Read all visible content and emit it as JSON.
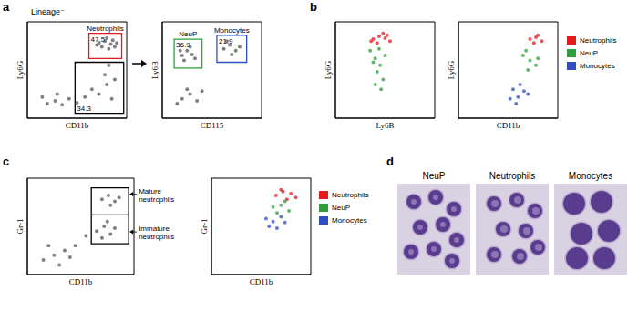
{
  "panel_letters": [
    "a",
    "b",
    "c",
    "d"
  ],
  "chart_data": [
    {
      "type": "scatter",
      "title": "Lineage⁻",
      "x_label": "CD11b",
      "y_label": "Ly6G",
      "xlim": [
        0,
        100
      ],
      "ylim": [
        0,
        100
      ],
      "tick_labels": false,
      "series": [
        {
          "color": "#555555",
          "x": [
            72,
            78,
            84,
            88,
            80,
            75,
            86,
            70,
            82,
            90,
            20,
            28,
            35,
            42,
            50,
            58,
            65,
            72,
            80,
            85,
            78,
            88,
            82,
            15,
            30
          ],
          "values": [
            78,
            80,
            77,
            74,
            83,
            74,
            81,
            76,
            72,
            78,
            15,
            18,
            14,
            20,
            16,
            22,
            30,
            25,
            35,
            20,
            45,
            40,
            55,
            22,
            25
          ]
        }
      ],
      "gates": [
        {
          "name": "Neutrophils",
          "value": 47.5,
          "color": "#e41a1c",
          "x": [
            62,
            95
          ],
          "y": [
            62,
            88
          ]
        },
        {
          "value": 34.3,
          "color": "#000000",
          "x": [
            48,
            97
          ],
          "y": [
            5,
            58
          ]
        }
      ]
    },
    {
      "type": "scatter",
      "x_label": "CD115",
      "y_label": "Ly6B",
      "xlim": [
        0,
        100
      ],
      "ylim": [
        0,
        100
      ],
      "tick_labels": false,
      "series": [
        {
          "color": "#555555",
          "x": [
            20,
            25,
            30,
            22,
            28,
            33,
            18,
            62,
            68,
            74,
            70,
            78,
            65,
            20,
            28,
            35,
            25,
            40,
            15
          ],
          "values": [
            65,
            70,
            66,
            60,
            74,
            62,
            70,
            72,
            76,
            70,
            66,
            74,
            80,
            20,
            25,
            18,
            30,
            28,
            15
          ]
        }
      ],
      "gates": [
        {
          "name": "NeuP",
          "value": 36.9,
          "color": "#2e9e3e",
          "x": [
            12,
            40
          ],
          "y": [
            52,
            82
          ]
        },
        {
          "name": "Monocytes",
          "value": 21.9,
          "color": "#2f4fbf",
          "x": [
            55,
            85
          ],
          "y": [
            58,
            86
          ]
        }
      ]
    },
    {
      "type": "scatter",
      "x_label": "Ly6B",
      "y_label": "Ly6G",
      "xlim": [
        0,
        100
      ],
      "ylim": [
        0,
        100
      ],
      "tick_labels": false,
      "series": [
        {
          "name": "Neutrophils",
          "color": "#e41a1c",
          "x": [
            38,
            44,
            50,
            55,
            42,
            48,
            36,
            52
          ],
          "values": [
            82,
            85,
            83,
            80,
            78,
            88,
            80,
            86
          ]
        },
        {
          "name": "NeuP",
          "color": "#2e9e3e",
          "x": [
            35,
            40,
            45,
            42,
            48,
            38,
            50,
            44,
            40,
            46
          ],
          "values": [
            70,
            62,
            55,
            48,
            40,
            58,
            65,
            72,
            35,
            30
          ]
        }
      ]
    },
    {
      "type": "scatter",
      "x_label": "CD11b",
      "y_label": "Ly6G",
      "xlim": [
        0,
        100
      ],
      "ylim": [
        0,
        100
      ],
      "tick_labels": false,
      "legend": "right",
      "series": [
        {
          "name": "Neutrophils",
          "color": "#e41a1c",
          "x": [
            72,
            78,
            84,
            76,
            80
          ],
          "values": [
            82,
            84,
            80,
            78,
            86
          ]
        },
        {
          "name": "NeuP",
          "color": "#2e9e3e",
          "x": [
            65,
            72,
            78,
            70,
            80,
            68
          ],
          "values": [
            65,
            60,
            55,
            50,
            62,
            70
          ]
        },
        {
          "name": "Monocytes",
          "color": "#2f4fbf",
          "x": [
            55,
            60,
            66,
            52,
            62,
            70,
            58
          ],
          "values": [
            30,
            22,
            28,
            20,
            35,
            25,
            15
          ]
        }
      ]
    },
    {
      "type": "scatter",
      "x_label": "CD11b",
      "y_label": "Gr-1",
      "xlim": [
        0,
        100
      ],
      "ylim": [
        0,
        100
      ],
      "tick_labels": false,
      "series": [
        {
          "color": "#555555",
          "x": [
            70,
            76,
            82,
            78,
            86,
            65,
            72,
            78,
            70,
            82,
            75,
            15,
            25,
            35,
            45,
            55,
            20,
            40,
            30
          ],
          "values": [
            78,
            82,
            76,
            72,
            80,
            45,
            50,
            42,
            38,
            48,
            55,
            15,
            20,
            25,
            30,
            40,
            30,
            18,
            10
          ]
        }
      ],
      "gates": [
        {
          "color": "#000000",
          "x": [
            60,
            95
          ],
          "y": [
            32,
            90
          ],
          "divide": 62
        }
      ],
      "annotations": [
        "Mature neutrophils",
        "Immature neutrophils"
      ]
    },
    {
      "type": "scatter",
      "x_label": "CD11b",
      "y_label": "Gr-1",
      "xlim": [
        0,
        100
      ],
      "ylim": [
        0,
        100
      ],
      "tick_labels": false,
      "legend": "right",
      "series": [
        {
          "name": "Neutrophils",
          "color": "#e41a1c",
          "x": [
            65,
            72,
            80,
            76,
            85,
            70
          ],
          "values": [
            82,
            86,
            84,
            78,
            80,
            88
          ]
        },
        {
          "name": "NeuP",
          "color": "#2e9e3e",
          "x": [
            62,
            70,
            78,
            66,
            74
          ],
          "values": [
            70,
            72,
            66,
            64,
            76
          ]
        },
        {
          "name": "Monocytes",
          "color": "#2f4fbf",
          "x": [
            55,
            62,
            70,
            58,
            66,
            74
          ],
          "values": [
            58,
            55,
            60,
            50,
            48,
            54
          ]
        }
      ]
    }
  ],
  "images": {
    "labels": [
      "NeuP",
      "Neutrophils",
      "Monocytes"
    ]
  }
}
